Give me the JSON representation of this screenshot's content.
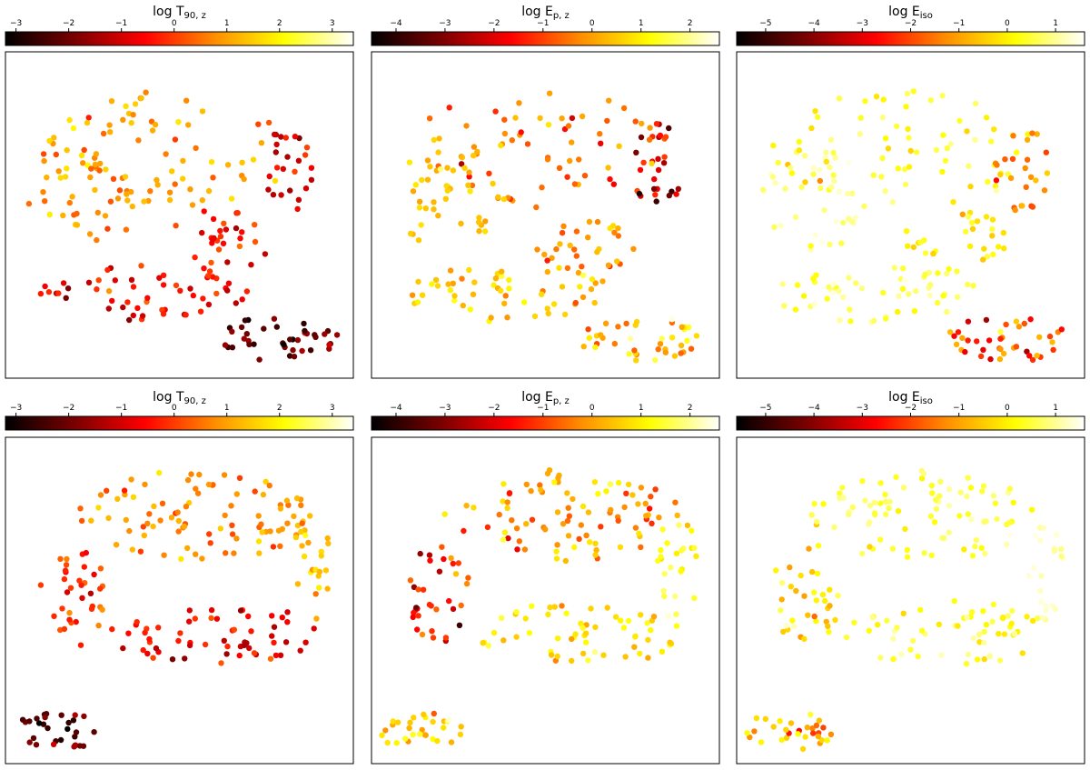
{
  "figure": {
    "description_layout": "2 rows x 3 columns of t-SNE style scatter maps, each with a colorbar on top",
    "colormap": "afmhot-like",
    "colormap_stops": [
      "#000000",
      "#7a0000",
      "#ff0000",
      "#ff8c00",
      "#ffff00",
      "#ffffff"
    ]
  },
  "chart_data": [
    {
      "id": "top-left",
      "type": "scatter",
      "colorbar": {
        "label_main": "log T",
        "label_sub": "90, z",
        "range": [
          -3.2,
          3.4
        ],
        "ticks": [
          "−3",
          "−2",
          "−1",
          "0",
          "1",
          "2",
          "3"
        ],
        "tick_values": [
          -3,
          -2,
          -1,
          0,
          1,
          2,
          3
        ]
      },
      "xlim": [
        0,
        100
      ],
      "ylim": [
        0,
        100
      ],
      "groups": [
        {
          "cx": 48,
          "cy": 30,
          "rx": 38,
          "ry": 18,
          "n": 70,
          "value": 1.0,
          "spread": 0.5
        },
        {
          "cx": 22,
          "cy": 45,
          "rx": 16,
          "ry": 16,
          "n": 40,
          "value": 0.8,
          "spread": 0.5
        },
        {
          "cx": 62,
          "cy": 58,
          "rx": 16,
          "ry": 10,
          "n": 30,
          "value": -0.4,
          "spread": 0.6
        },
        {
          "cx": 40,
          "cy": 74,
          "rx": 30,
          "ry": 9,
          "n": 55,
          "value": -0.5,
          "spread": 0.6
        },
        {
          "cx": 78,
          "cy": 88,
          "rx": 18,
          "ry": 7,
          "n": 40,
          "value": -2.1,
          "spread": 0.6
        },
        {
          "cx": 82,
          "cy": 35,
          "rx": 8,
          "ry": 14,
          "n": 25,
          "value": -0.8,
          "spread": 0.5
        }
      ]
    },
    {
      "id": "top-middle",
      "type": "scatter",
      "colorbar": {
        "label_main": "log E",
        "label_sub": "p, z",
        "range": [
          -4.5,
          2.6
        ],
        "ticks": [
          "−4",
          "−3",
          "−2",
          "−1",
          "0",
          "1",
          "2"
        ],
        "tick_values": [
          -4,
          -3,
          -2,
          -1,
          0,
          1,
          2
        ]
      },
      "xlim": [
        0,
        100
      ],
      "ylim": [
        0,
        100
      ],
      "groups": [
        {
          "cx": 48,
          "cy": 30,
          "rx": 38,
          "ry": 18,
          "n": 70,
          "value": -0.5,
          "spread": 0.6
        },
        {
          "cx": 22,
          "cy": 45,
          "rx": 16,
          "ry": 16,
          "n": 40,
          "value": 0.5,
          "spread": 0.4
        },
        {
          "cx": 62,
          "cy": 58,
          "rx": 16,
          "ry": 10,
          "n": 30,
          "value": -0.4,
          "spread": 0.6
        },
        {
          "cx": 40,
          "cy": 74,
          "rx": 30,
          "ry": 9,
          "n": 55,
          "value": 0.4,
          "spread": 0.5
        },
        {
          "cx": 78,
          "cy": 88,
          "rx": 18,
          "ry": 7,
          "n": 40,
          "value": 0.5,
          "spread": 0.8
        },
        {
          "cx": 82,
          "cy": 35,
          "rx": 8,
          "ry": 14,
          "n": 25,
          "value": -2.2,
          "spread": 0.8
        }
      ]
    },
    {
      "id": "top-right",
      "type": "scatter",
      "colorbar": {
        "label_main": "log E",
        "label_sub": "iso",
        "range": [
          -5.6,
          1.6
        ],
        "ticks": [
          "−5",
          "−4",
          "−3",
          "−2",
          "−1",
          "0",
          "1"
        ],
        "tick_values": [
          -5,
          -4,
          -3,
          -2,
          -1,
          0,
          1
        ]
      },
      "xlim": [
        0,
        100
      ],
      "ylim": [
        0,
        100
      ],
      "groups": [
        {
          "cx": 48,
          "cy": 30,
          "rx": 38,
          "ry": 18,
          "n": 70,
          "value": 0.3,
          "spread": 0.4
        },
        {
          "cx": 22,
          "cy": 45,
          "rx": 16,
          "ry": 16,
          "n": 40,
          "value": 0.9,
          "spread": 0.4
        },
        {
          "cx": 62,
          "cy": 58,
          "rx": 16,
          "ry": 10,
          "n": 30,
          "value": 0.1,
          "spread": 0.4
        },
        {
          "cx": 40,
          "cy": 74,
          "rx": 30,
          "ry": 9,
          "n": 55,
          "value": 0.7,
          "spread": 0.4
        },
        {
          "cx": 78,
          "cy": 88,
          "rx": 18,
          "ry": 7,
          "n": 40,
          "value": -1.8,
          "spread": 1.0
        },
        {
          "cx": 82,
          "cy": 35,
          "rx": 8,
          "ry": 14,
          "n": 25,
          "value": -1.5,
          "spread": 0.6
        }
      ]
    },
    {
      "id": "bottom-left",
      "type": "scatter",
      "colorbar": {
        "label_main": "log T",
        "label_sub": "90, z",
        "range": [
          -3.2,
          3.4
        ],
        "ticks": [
          "−3",
          "−2",
          "−1",
          "0",
          "1",
          "2",
          "3"
        ],
        "tick_values": [
          -3,
          -2,
          -1,
          0,
          1,
          2,
          3
        ]
      },
      "xlim": [
        0,
        100
      ],
      "ylim": [
        0,
        100
      ],
      "groups": [
        {
          "cx": 55,
          "cy": 24,
          "rx": 34,
          "ry": 14,
          "n": 90,
          "value": 0.8,
          "spread": 0.5
        },
        {
          "cx": 20,
          "cy": 48,
          "rx": 10,
          "ry": 16,
          "n": 35,
          "value": -0.3,
          "spread": 0.6
        },
        {
          "cx": 60,
          "cy": 60,
          "rx": 30,
          "ry": 10,
          "n": 60,
          "value": -0.6,
          "spread": 0.5
        },
        {
          "cx": 88,
          "cy": 40,
          "rx": 6,
          "ry": 18,
          "n": 25,
          "value": 1.3,
          "spread": 0.4
        },
        {
          "cx": 15,
          "cy": 90,
          "rx": 13,
          "ry": 6,
          "n": 30,
          "value": -2.2,
          "spread": 0.5
        }
      ]
    },
    {
      "id": "bottom-middle",
      "type": "scatter",
      "colorbar": {
        "label_main": "log E",
        "label_sub": "p, z",
        "range": [
          -4.5,
          2.6
        ],
        "ticks": [
          "−4",
          "−3",
          "−2",
          "−1",
          "0",
          "1",
          "2"
        ],
        "tick_values": [
          -4,
          -3,
          -2,
          -1,
          0,
          1,
          2
        ]
      },
      "xlim": [
        0,
        100
      ],
      "ylim": [
        0,
        100
      ],
      "groups": [
        {
          "cx": 55,
          "cy": 24,
          "rx": 34,
          "ry": 14,
          "n": 90,
          "value": 0.0,
          "spread": 0.7
        },
        {
          "cx": 20,
          "cy": 48,
          "rx": 10,
          "ry": 16,
          "n": 35,
          "value": -1.5,
          "spread": 0.8
        },
        {
          "cx": 60,
          "cy": 60,
          "rx": 30,
          "ry": 10,
          "n": 60,
          "value": 0.8,
          "spread": 0.5
        },
        {
          "cx": 88,
          "cy": 40,
          "rx": 6,
          "ry": 18,
          "n": 25,
          "value": 1.3,
          "spread": 0.4
        },
        {
          "cx": 15,
          "cy": 90,
          "rx": 13,
          "ry": 6,
          "n": 30,
          "value": 0.7,
          "spread": 0.6
        }
      ]
    },
    {
      "id": "bottom-right",
      "type": "scatter",
      "colorbar": {
        "label_main": "log E",
        "label_sub": "iso",
        "range": [
          -5.6,
          1.6
        ],
        "ticks": [
          "−5",
          "−4",
          "−3",
          "−2",
          "−1",
          "0",
          "1"
        ],
        "tick_values": [
          -5,
          -4,
          -3,
          -2,
          -1,
          0,
          1
        ]
      },
      "xlim": [
        0,
        100
      ],
      "ylim": [
        0,
        100
      ],
      "groups": [
        {
          "cx": 55,
          "cy": 24,
          "rx": 34,
          "ry": 14,
          "n": 90,
          "value": 0.5,
          "spread": 0.4
        },
        {
          "cx": 20,
          "cy": 48,
          "rx": 10,
          "ry": 16,
          "n": 35,
          "value": -0.3,
          "spread": 0.6
        },
        {
          "cx": 60,
          "cy": 60,
          "rx": 30,
          "ry": 10,
          "n": 60,
          "value": 0.5,
          "spread": 0.4
        },
        {
          "cx": 88,
          "cy": 40,
          "rx": 6,
          "ry": 18,
          "n": 25,
          "value": 1.3,
          "spread": 0.3
        },
        {
          "cx": 15,
          "cy": 90,
          "rx": 13,
          "ry": 6,
          "n": 30,
          "value": -0.8,
          "spread": 0.8
        }
      ]
    }
  ]
}
